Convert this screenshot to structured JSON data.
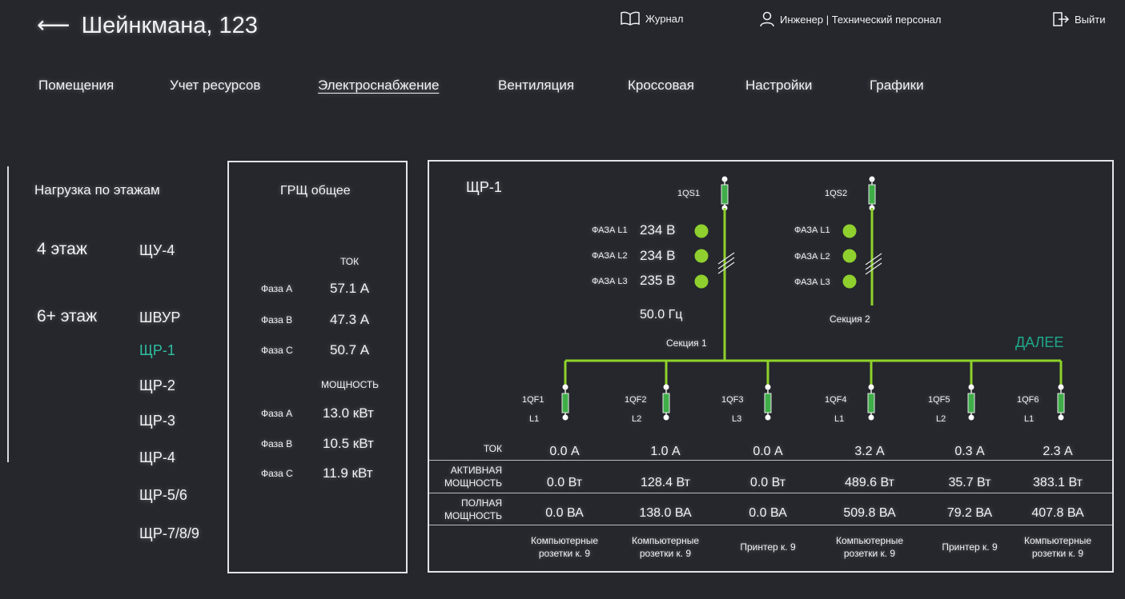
{
  "header": {
    "back_arrow": "⟵",
    "title": "Шейнкмана, 123",
    "journal_label": "Журнал",
    "user_label": "Инженер | Технический персонал",
    "logout_label": "Выйти"
  },
  "tabs": [
    {
      "label": "Помещения"
    },
    {
      "label": "Учет ресурсов"
    },
    {
      "label": "Электроснабжение"
    },
    {
      "label": "Вентиляция"
    },
    {
      "label": "Кроссовая"
    },
    {
      "label": "Настройки"
    },
    {
      "label": "Графики"
    }
  ],
  "left": {
    "title": "Нагрузка по этажам",
    "floor4": "4 этаж",
    "floor6": "6+ этаж",
    "items": [
      "ЩУ-4",
      "ШВУР",
      "ЩР-1",
      "ЩР-2",
      "ЩР-3",
      "ЩР-4",
      "ЩР-5/6",
      "ЩР-7/8/9"
    ]
  },
  "grsh": {
    "title": "ГРЩ общее",
    "current_label": "ТОК",
    "power_label": "МОЩНОСТЬ",
    "phase_a": "Фаза A",
    "phase_b": "Фаза B",
    "phase_c": "Фаза C",
    "current": [
      "57.1 А",
      "47.3 А",
      "50.7 А"
    ],
    "power": [
      "13.0 кВт",
      "10.5 кВт",
      "11.9 кВт"
    ]
  },
  "schema": {
    "title": "ЩР-1",
    "next_label": "ДАЛЕЕ",
    "qs1": "1QS1",
    "qs2": "1QS2",
    "phase_l1": "ФАЗА L1",
    "phase_l2": "ФАЗА L2",
    "phase_l3": "ФАЗА L3",
    "voltages": [
      "234 В",
      "234 В",
      "235 В"
    ],
    "frequency": "50.0 Гц",
    "section1": "Секция 1",
    "section2": "Секция 2",
    "indicator_color": "#8fcf2e",
    "bus_color": "#8fd22b",
    "row_current": "ТОК",
    "row_active_1": "АКТИВНАЯ",
    "row_active_2": "МОЩНОСТЬ",
    "row_full_1": "ПОЛНАЯ",
    "row_full_2": "МОЩНОСТЬ",
    "breakers": [
      {
        "name": "1QF1",
        "phase": "L1",
        "current": "0.0 А",
        "active": "0.0 Вт",
        "full": "0.0 ВА",
        "load1": "Компьютерные",
        "load2": "розетки к. 9"
      },
      {
        "name": "1QF2",
        "phase": "L2",
        "current": "1.0 А",
        "active": "128.4 Вт",
        "full": "138.0 ВА",
        "load1": "Компьютерные",
        "load2": "розетки к. 9"
      },
      {
        "name": "1QF3",
        "phase": "L3",
        "current": "0.0 А",
        "active": "0.0 Вт",
        "full": "0.0 ВА",
        "load1": "Принтер к. 9",
        "load2": ""
      },
      {
        "name": "1QF4",
        "phase": "L1",
        "current": "3.2 А",
        "active": "489.6 Вт",
        "full": "509.8 ВА",
        "load1": "Компьютерные",
        "load2": "розетки к. 9"
      },
      {
        "name": "1QF5",
        "phase": "L2",
        "current": "0.3 А",
        "active": "35.7 Вт",
        "full": "79.2 ВА",
        "load1": "Принтер к. 9",
        "load2": ""
      },
      {
        "name": "1QF6",
        "phase": "L1",
        "current": "2.3 А",
        "active": "383.1 Вт",
        "full": "407.8 ВА",
        "load1": "Компьютерные",
        "load2": "розетки к. 9"
      }
    ]
  }
}
